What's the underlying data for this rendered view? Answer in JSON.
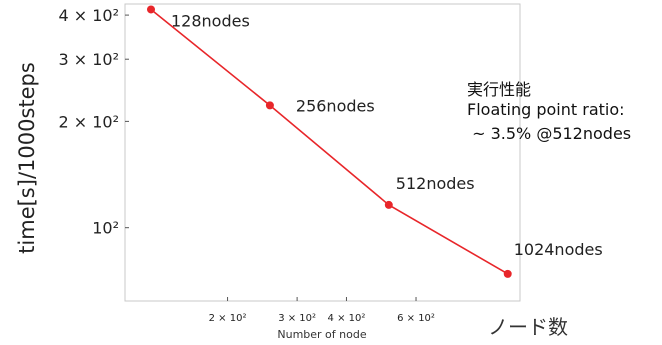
{
  "chart_data": {
    "type": "line",
    "xscale": "log",
    "yscale": "log",
    "xlabel": "Number of node",
    "ylabel": "time[s]/1000steps",
    "xlabel_jp": "ノード数",
    "xlim": [
      110,
      1100
    ],
    "ylim": [
      62,
      430
    ],
    "x_ticks": [
      {
        "value": 200,
        "label": "2 × 10²"
      },
      {
        "value": 300,
        "label": "3 × 10²"
      },
      {
        "value": 400,
        "label": "4 × 10²"
      },
      {
        "value": 600,
        "label": "6 × 10²"
      }
    ],
    "y_ticks": [
      {
        "value": 100,
        "label": "10²"
      },
      {
        "value": 200,
        "label": "2 × 10²"
      },
      {
        "value": 300,
        "label": "3 × 10²"
      },
      {
        "value": 400,
        "label": "4 × 10²"
      }
    ],
    "series": [
      {
        "color": "#e8262a",
        "x": [
          128,
          256,
          512,
          1024
        ],
        "y": [
          415,
          222,
          116,
          74
        ],
        "labels": [
          "128nodes",
          "256nodes",
          "512nodes",
          "1024nodes"
        ]
      }
    ],
    "grid": false
  },
  "note": {
    "line1": "実行性能",
    "line2": "Floating point ratio:",
    "line3": " ~ 3.5% @512nodes"
  }
}
